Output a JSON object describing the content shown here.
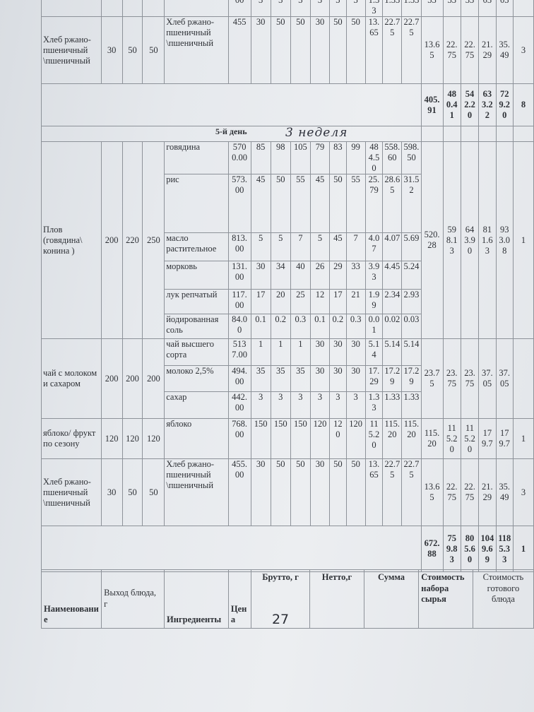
{
  "previous_tail": {
    "price": "00",
    "brutto": [
      "3",
      "3",
      "3"
    ],
    "netto": [
      "3",
      "3",
      "3"
    ],
    "sum": [
      "1.33",
      "1.33",
      "1.33"
    ],
    "costs": [
      "33",
      "33",
      "33",
      "03",
      "03",
      ""
    ]
  },
  "sections": [
    {
      "name": "Хлеб ржано-пшеничный \\пшеничный",
      "outputs": [
        "30",
        "50",
        "50"
      ],
      "ingredients": [
        {
          "name": "Хлеб ржано-пшеничный \\пшеничный",
          "price": "455",
          "brutto": [
            "30",
            "50",
            "50"
          ],
          "netto": [
            "30",
            "50",
            "50"
          ],
          "sum": [
            "13.65",
            "22.75",
            "22.75"
          ]
        }
      ],
      "costs": [
        "13.65",
        "22.75",
        "22.75",
        "21.29",
        "35.49",
        "3"
      ]
    },
    {
      "total": [
        "405.91",
        "480.41",
        "542.20",
        "633.22",
        "729.20",
        "8"
      ]
    },
    {
      "day": "5-й день",
      "handwritten_note": "3 неделя"
    },
    {
      "name": "Плов (говядина\\ конина )",
      "outputs": [
        "200",
        "220",
        "250"
      ],
      "ingredients": [
        {
          "name": "говядина",
          "price": "5700.00",
          "brutto": [
            "85",
            "98",
            "105"
          ],
          "netto": [
            "79",
            "83",
            "99"
          ],
          "sum": [
            "484.50",
            "558.60",
            "598.50"
          ]
        },
        {
          "name": "рис",
          "price": "573.00",
          "brutto": [
            "45",
            "50",
            "55"
          ],
          "netto": [
            "45",
            "50",
            "55"
          ],
          "sum": [
            "25.79",
            "28.65",
            "31.52"
          ]
        },
        {
          "name": "масло растительное",
          "price": "813.00",
          "brutto": [
            "5",
            "5",
            "7"
          ],
          "netto": [
            "5",
            "45",
            "7"
          ],
          "sum": [
            "4.07",
            "4.07",
            "5.69"
          ]
        },
        {
          "name": "морковь",
          "price": "131.00",
          "brutto": [
            "30",
            "34",
            "40"
          ],
          "netto": [
            "26",
            "29",
            "33"
          ],
          "sum": [
            "3.93",
            "4.45",
            "5.24"
          ]
        },
        {
          "name": "лук репчатый",
          "price": "117.00",
          "brutto": [
            "17",
            "20",
            "25"
          ],
          "netto": [
            "12",
            "17",
            "21"
          ],
          "sum": [
            "1.99",
            "2.34",
            "2.93"
          ]
        },
        {
          "name": "йодированная соль",
          "price": "84.00",
          "brutto": [
            "0.1",
            "0.2",
            "0.3"
          ],
          "netto": [
            "0.1",
            "0.2",
            "0.3"
          ],
          "sum": [
            "0.01",
            "0.02",
            "0.03"
          ]
        }
      ],
      "costs": [
        "520.28",
        "598.13",
        "643.90",
        "811.63",
        "933.08",
        "1"
      ]
    },
    {
      "name": "чай с молоком и сахаром",
      "outputs": [
        "200",
        "200",
        "200"
      ],
      "ingredients": [
        {
          "name": "чай высшего сорта",
          "price": "5137.00",
          "brutto": [
            "1",
            "1",
            "1"
          ],
          "netto": [
            "30",
            "30",
            "30"
          ],
          "sum": [
            "5.14",
            "5.14",
            "5.14"
          ]
        },
        {
          "name": "молоко 2,5%",
          "price": "494.00",
          "brutto": [
            "35",
            "35",
            "35"
          ],
          "netto": [
            "30",
            "30",
            "30"
          ],
          "sum": [
            "17.29",
            "17.29",
            "17.29"
          ]
        },
        {
          "name": "сахар",
          "price": "442.00",
          "brutto": [
            "3",
            "3",
            "3"
          ],
          "netto": [
            "3",
            "3",
            "3"
          ],
          "sum": [
            "1.33",
            "1.33",
            "1.33"
          ]
        }
      ],
      "costs": [
        "23.75",
        "23.75",
        "23.75",
        "37.05",
        "37.05",
        ""
      ]
    },
    {
      "name": "яблоко/ фрукт по сезону",
      "outputs": [
        "120",
        "120",
        "120"
      ],
      "ingredients": [
        {
          "name": "яблоко",
          "price": "768.00",
          "brutto": [
            "150",
            "150",
            "150"
          ],
          "netto": [
            "120",
            "120",
            "120"
          ],
          "sum": [
            "115.20",
            "115.20",
            "115.20"
          ]
        }
      ],
      "costs": [
        "115.20",
        "115.20",
        "115.20",
        "179.7",
        "179.7",
        "1"
      ]
    },
    {
      "name": "Хлеб ржано-пшеничный \\пшеничный",
      "outputs": [
        "30",
        "50",
        "50"
      ],
      "ingredients": [
        {
          "name": "Хлеб ржано-пшеничный \\пшеничный",
          "price": "455.00",
          "brutto": [
            "30",
            "50",
            "50"
          ],
          "netto": [
            "30",
            "50",
            "50"
          ],
          "sum": [
            "13.65",
            "22.75",
            "22.75"
          ]
        }
      ],
      "costs": [
        "13.65",
        "22.75",
        "22.75",
        "21.29",
        "35.49",
        "3"
      ]
    },
    {
      "total": [
        "672.88",
        "759.83",
        "805.60",
        "1049.69",
        "1185.33",
        "1"
      ]
    }
  ],
  "next_header": {
    "name": "Наименование",
    "output": "Выход блюда, г",
    "ingredients": "Ингредиенты",
    "price": "Цена",
    "brutto": "Брутто, г",
    "netto": "Нетто,г",
    "sum": "Сумма",
    "raw_cost": "Стоимость набора сырья",
    "dish_cost": "Стоимость готового блюда"
  },
  "page_number": "27"
}
